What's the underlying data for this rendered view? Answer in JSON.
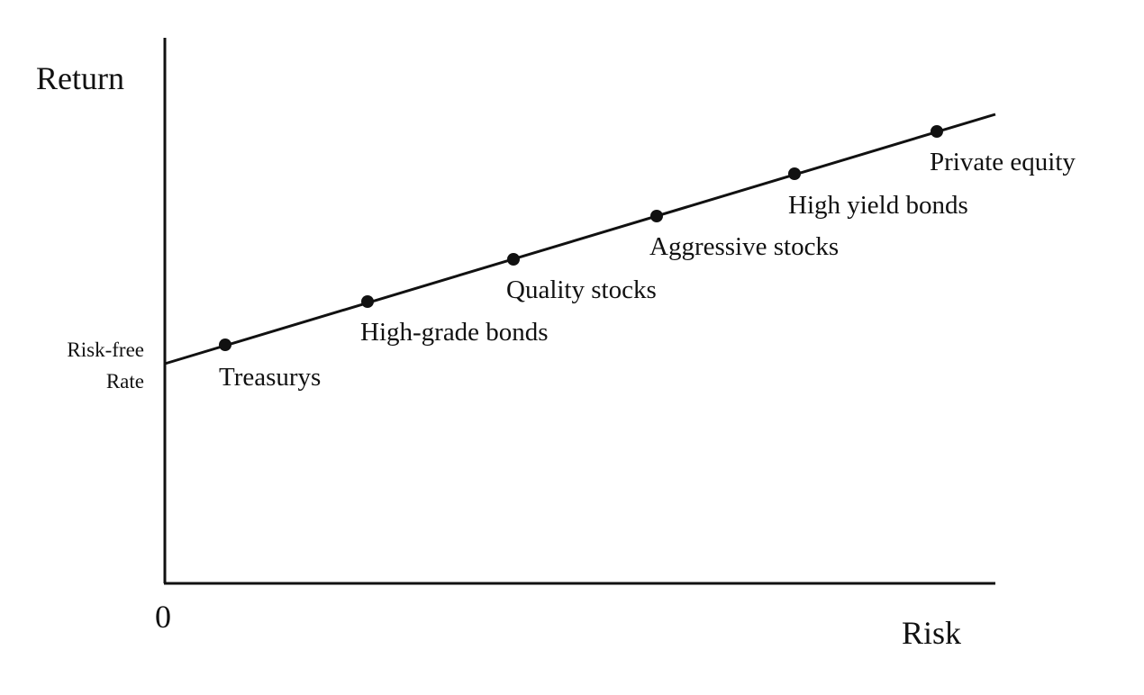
{
  "axes": {
    "y_label": "Return",
    "x_label": "Risk",
    "origin": "0"
  },
  "intercept_label": [
    "Risk-free",
    "Rate"
  ],
  "points": [
    {
      "label": "Treasurys"
    },
    {
      "label": "High-grade bonds"
    },
    {
      "label": "Quality stocks"
    },
    {
      "label": "Aggressive stocks"
    },
    {
      "label": "High yield bonds"
    },
    {
      "label": "Private equity"
    }
  ]
}
